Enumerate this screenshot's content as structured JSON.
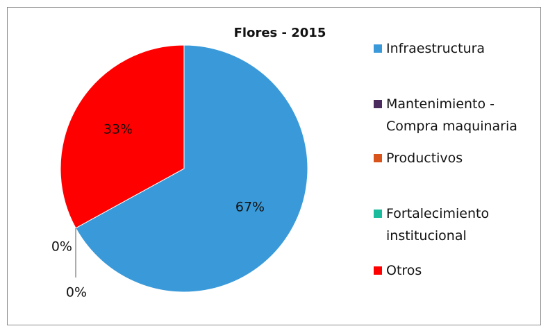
{
  "chart_data": {
    "type": "pie",
    "title": "Flores - 2015",
    "categories": [
      "Infraestructura",
      "Mantenimiento - Compra maquinaria",
      "Productivos",
      "Fortalecimiento institucional",
      "Otros"
    ],
    "values": [
      67,
      0,
      0,
      0,
      33
    ],
    "value_labels": [
      "67%",
      "0%",
      "0%",
      null,
      "33%"
    ],
    "colors": [
      "#3a9ad9",
      "#4b2a5e",
      "#d9541a",
      "#1abc9c",
      "#ff0000"
    ]
  }
}
